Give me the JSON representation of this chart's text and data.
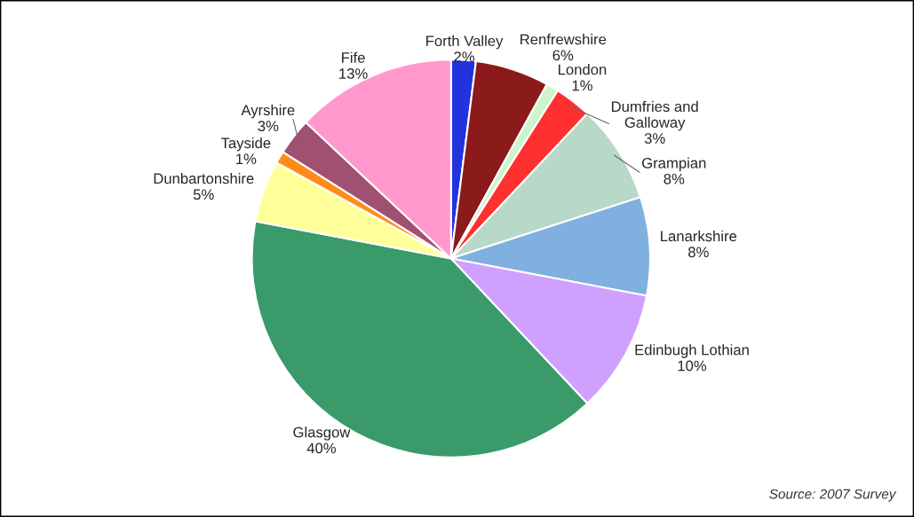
{
  "chart_data": {
    "type": "pie",
    "categories": [
      "Forth Valley",
      "Renfrewshire",
      "London",
      "Dumfries and Galloway",
      "Grampian",
      "Lanarkshire",
      "Edinbugh Lothian",
      "Glasgow",
      "Dunbartonshire",
      "Tayside",
      "Ayrshire",
      "Fife"
    ],
    "values": [
      2,
      6,
      1,
      3,
      8,
      8,
      10,
      40,
      5,
      1,
      3,
      13
    ],
    "colors": [
      "#2233dd",
      "#8b1a1a",
      "#ccf5cc",
      "#ff3030",
      "#b8d8c8",
      "#80b0e0",
      "#d0a0ff",
      "#3a9a6a",
      "#ffff99",
      "#ff8c1a",
      "#a05070",
      "#ff99cc"
    ],
    "value_labels": [
      "2%",
      "6%",
      "1%",
      "3%",
      "8%",
      "8%",
      "10%",
      "40%",
      "5%",
      "1%",
      "3%",
      "13%"
    ],
    "annotations": [
      "Source: 2007 Survey"
    ],
    "legend": false
  }
}
